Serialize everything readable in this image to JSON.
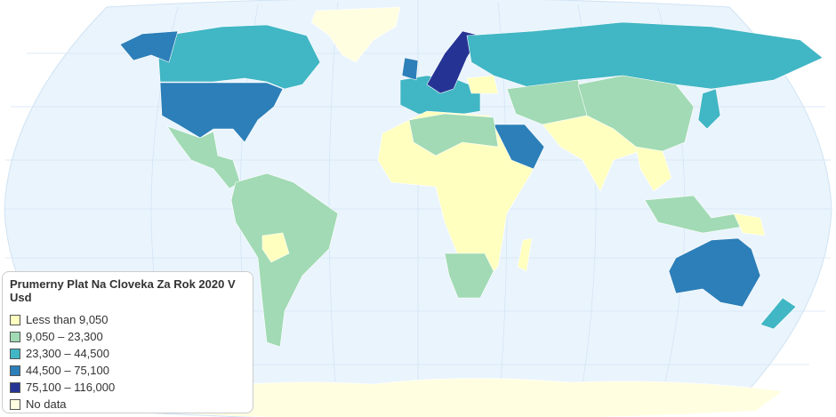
{
  "colors": {
    "ocean": "#eaf4fd",
    "graticule": "#d3e5f5"
  },
  "legend": {
    "title": "Prumerny Plat Na Cloveka Za Rok 2020 V Usd",
    "items": [
      {
        "label": "Less than 9,050",
        "color": "#ffffbf"
      },
      {
        "label": "9,050 – 23,300",
        "color": "#a1dab4"
      },
      {
        "label": "23,300 – 44,500",
        "color": "#41b6c4"
      },
      {
        "label": "44,500 – 75,100",
        "color": "#2c7fb8"
      },
      {
        "label": "75,100 – 116,000",
        "color": "#253494"
      },
      {
        "label": "No data",
        "color": "#fffee0"
      }
    ]
  }
}
